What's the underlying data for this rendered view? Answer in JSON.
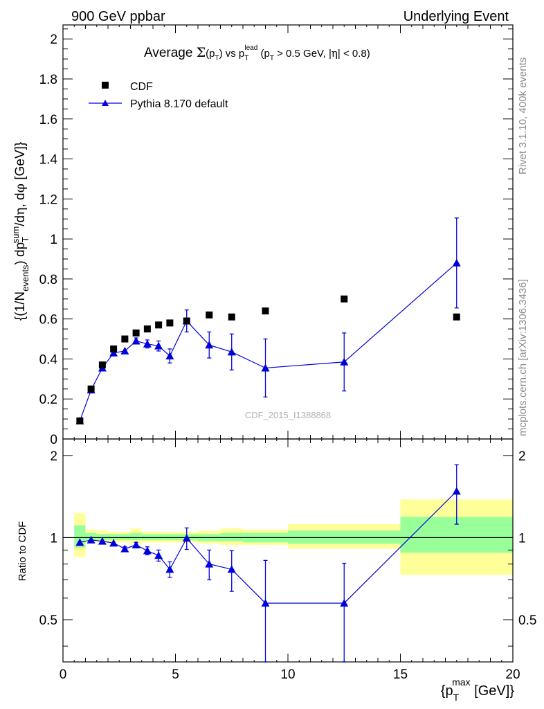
{
  "header": {
    "left": "900 GeV ppbar",
    "right": "Underlying Event"
  },
  "side_labels": {
    "rivet": "Rivet 3.1.10,  400k events",
    "mcplots": "mcplots.cern.ch [arXiv:1306.3436]"
  },
  "watermark": "CDF_2015_I1388868",
  "chart_data": [
    {
      "type": "scatter",
      "panel": "main",
      "title": "Average Σ(pT) vs pT^lead (pT > 0.5 GeV, |η| < 0.8)",
      "ylabel": "{(1/N_events) dp_T^sum/dη, dφ [GeV]}",
      "xlim": [
        0,
        20
      ],
      "ylim": [
        0,
        2.07
      ],
      "yticks": [
        0,
        0.2,
        0.4,
        0.6,
        0.8,
        1,
        1.2,
        1.4,
        1.6,
        1.8,
        2
      ],
      "ytick_labels": [
        "0",
        "0.2",
        "0.4",
        "0.6",
        "0.8",
        "1",
        "1.2",
        "1.4",
        "1.6",
        "1.8",
        "2"
      ],
      "legend_position": "top-left",
      "series": [
        {
          "name": "CDF",
          "marker": "square",
          "color": "#000000",
          "x": [
            0.75,
            1.25,
            1.75,
            2.25,
            2.75,
            3.25,
            3.75,
            4.25,
            4.75,
            5.5,
            6.5,
            7.5,
            9.0,
            12.5,
            17.5
          ],
          "y": [
            0.09,
            0.25,
            0.37,
            0.45,
            0.5,
            0.53,
            0.55,
            0.57,
            0.58,
            0.59,
            0.62,
            0.61,
            0.64,
            0.7,
            0.61
          ]
        },
        {
          "name": "Pythia 8.170 default",
          "marker": "triangle",
          "color": "#0000dd",
          "x": [
            0.75,
            1.25,
            1.75,
            2.25,
            2.75,
            3.25,
            3.75,
            4.25,
            4.75,
            5.5,
            6.5,
            7.5,
            9.0,
            12.5,
            17.5
          ],
          "y": [
            0.09,
            0.245,
            0.355,
            0.43,
            0.44,
            0.49,
            0.475,
            0.465,
            0.415,
            0.59,
            0.47,
            0.435,
            0.355,
            0.385,
            0.88
          ],
          "yerr": [
            0.005,
            0.01,
            0.01,
            0.01,
            0.012,
            0.015,
            0.02,
            0.025,
            0.035,
            0.055,
            0.065,
            0.09,
            0.145,
            0.145,
            0.225
          ]
        }
      ]
    },
    {
      "type": "scatter",
      "panel": "ratio",
      "ylabel": "Ratio to CDF",
      "xlabel": "{p_T^max [GeV]}",
      "xlim": [
        0,
        20
      ],
      "ylim": [
        0.35,
        2.3
      ],
      "log_y": true,
      "xticks": [
        0,
        5,
        10,
        15,
        20
      ],
      "xtick_labels": [
        "0",
        "5",
        "10",
        "15",
        "20"
      ],
      "yticks": [
        0.5,
        1,
        2
      ],
      "ytick_labels": [
        "0.5",
        "1",
        "2"
      ],
      "reference_line": 1,
      "bands": [
        {
          "x0": 0.5,
          "x1": 1.0,
          "yellow": [
            0.85,
            1.23
          ],
          "green": [
            0.92,
            1.11
          ]
        },
        {
          "x0": 1.0,
          "x1": 1.5,
          "yellow": [
            0.96,
            1.07
          ],
          "green": [
            0.98,
            1.04
          ]
        },
        {
          "x0": 1.5,
          "x1": 2.0,
          "yellow": [
            0.96,
            1.06
          ],
          "green": [
            0.98,
            1.03
          ]
        },
        {
          "x0": 2.0,
          "x1": 2.5,
          "yellow": [
            0.96,
            1.05
          ],
          "green": [
            0.98,
            1.03
          ]
        },
        {
          "x0": 2.5,
          "x1": 3.0,
          "yellow": [
            0.96,
            1.05
          ],
          "green": [
            0.98,
            1.03
          ]
        },
        {
          "x0": 3.0,
          "x1": 3.5,
          "yellow": [
            0.95,
            1.08
          ],
          "green": [
            0.98,
            1.04
          ]
        },
        {
          "x0": 3.5,
          "x1": 4.0,
          "yellow": [
            0.96,
            1.05
          ],
          "green": [
            0.98,
            1.03
          ]
        },
        {
          "x0": 4.0,
          "x1": 4.5,
          "yellow": [
            0.96,
            1.05
          ],
          "green": [
            0.98,
            1.03
          ]
        },
        {
          "x0": 4.5,
          "x1": 5.0,
          "yellow": [
            0.96,
            1.05
          ],
          "green": [
            0.98,
            1.03
          ]
        },
        {
          "x0": 5.0,
          "x1": 6.0,
          "yellow": [
            0.96,
            1.05
          ],
          "green": [
            0.98,
            1.03
          ]
        },
        {
          "x0": 6.0,
          "x1": 7.0,
          "yellow": [
            0.95,
            1.06
          ],
          "green": [
            0.97,
            1.03
          ]
        },
        {
          "x0": 7.0,
          "x1": 8.0,
          "yellow": [
            0.94,
            1.08
          ],
          "green": [
            0.97,
            1.04
          ]
        },
        {
          "x0": 8.0,
          "x1": 10.0,
          "yellow": [
            0.94,
            1.07
          ],
          "green": [
            0.96,
            1.04
          ]
        },
        {
          "x0": 10.0,
          "x1": 15.0,
          "yellow": [
            0.91,
            1.12
          ],
          "green": [
            0.95,
            1.06
          ]
        },
        {
          "x0": 15.0,
          "x1": 20.0,
          "yellow": [
            0.73,
            1.38
          ],
          "green": [
            0.88,
            1.19
          ]
        }
      ],
      "series": [
        {
          "name": "Pythia 8.170 default",
          "marker": "triangle",
          "color": "#0000dd",
          "x": [
            0.75,
            1.25,
            1.75,
            2.25,
            2.75,
            3.25,
            3.75,
            4.25,
            4.75,
            5.5,
            6.5,
            7.5,
            9.0,
            12.5,
            17.5
          ],
          "y": [
            0.96,
            0.98,
            0.97,
            0.955,
            0.91,
            0.94,
            0.895,
            0.86,
            0.765,
            0.995,
            0.8,
            0.765,
            0.575,
            0.575,
            1.48
          ],
          "yerr_lo": [
            0.01,
            0.01,
            0.01,
            0.01,
            0.015,
            0.02,
            0.03,
            0.04,
            0.05,
            0.09,
            0.1,
            0.13,
            0.23,
            0.23,
            0.36
          ],
          "yerr_hi": [
            0.01,
            0.01,
            0.01,
            0.01,
            0.015,
            0.02,
            0.03,
            0.04,
            0.05,
            0.09,
            0.1,
            0.13,
            0.25,
            0.23,
            0.37
          ]
        }
      ]
    }
  ]
}
